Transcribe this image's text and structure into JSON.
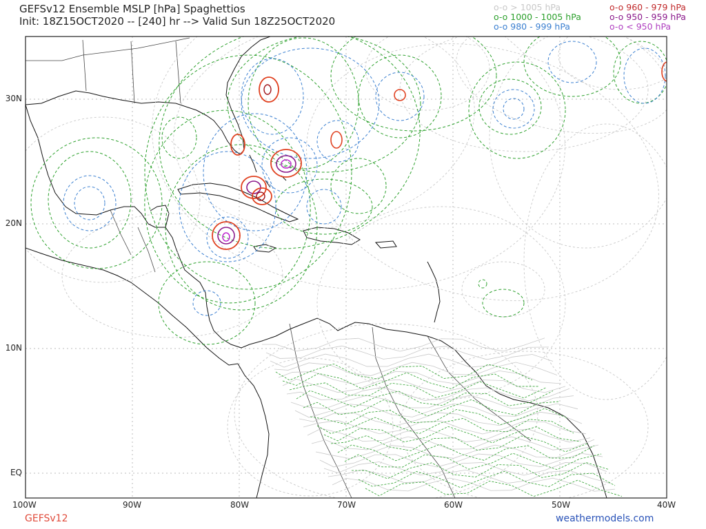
{
  "header": {
    "title_line1": "GEFSv12 Ensemble MSLP [hPa] Spaghettios",
    "title_line2": "Init: 18Z15OCT2020 -- [240] hr --> Valid Sun 18Z25OCT2020"
  },
  "legend": [
    {
      "label": "o-o > 1005 hPa",
      "color": "#c8c8c8"
    },
    {
      "label": "o-o 1000 - 1005 hPa",
      "color": "#2ca02c"
    },
    {
      "label": "o-o 980 - 999 hPa",
      "color": "#3a7fd0"
    },
    {
      "label": "o-o 960 - 979 hPa",
      "color": "#c0282a"
    },
    {
      "label": "o-o 950 - 959 hPa",
      "color": "#8b1a8b"
    },
    {
      "label": "o-o < 950 hPa",
      "color": "#b040c0"
    }
  ],
  "axes": {
    "y_labels": [
      "30N",
      "20N",
      "10N",
      "EQ"
    ],
    "x_labels": [
      "100W",
      "90W",
      "80W",
      "70W",
      "60W",
      "50W",
      "40W"
    ]
  },
  "footer": {
    "model": "GEFSv12",
    "site": "weathermodels.com"
  },
  "colors": {
    "gray": "#c8c8c8",
    "green": "#2ca02c",
    "blue": "#3a7fd0",
    "red": "#e0401f",
    "darkred": "#a0141a",
    "purple": "#8b1a8b",
    "magenta": "#c030d0",
    "land": "#111111",
    "grid": "#bbbbbb"
  }
}
